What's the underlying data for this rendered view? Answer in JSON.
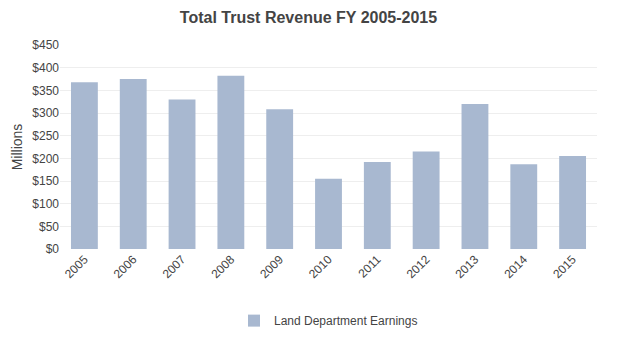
{
  "chart_data": {
    "type": "bar",
    "title": "Total Trust Revenue FY 2005-2015",
    "categories": [
      "2005",
      "2006",
      "2007",
      "2008",
      "2009",
      "2010",
      "2011",
      "2012",
      "2013",
      "2014",
      "2015"
    ],
    "series": [
      {
        "name": "Land Department Earnings",
        "color": "#a8b8d0",
        "values": [
          368,
          375,
          330,
          382,
          308,
          155,
          192,
          215,
          320,
          187,
          205
        ]
      }
    ],
    "ylabel": "Millions",
    "ylim": [
      0,
      450
    ],
    "yticks": [
      {
        "value": 0,
        "label": "$0"
      },
      {
        "value": 50,
        "label": "$50"
      },
      {
        "value": 100,
        "label": "$100"
      },
      {
        "value": 150,
        "label": "$150"
      },
      {
        "value": 200,
        "label": "$200"
      },
      {
        "value": 250,
        "label": "$250"
      },
      {
        "value": 300,
        "label": "$300"
      },
      {
        "value": 350,
        "label": "$350"
      },
      {
        "value": 400,
        "label": "$400"
      },
      {
        "value": 450,
        "label": "$450"
      }
    ],
    "grid": true,
    "legend": "bottom"
  }
}
